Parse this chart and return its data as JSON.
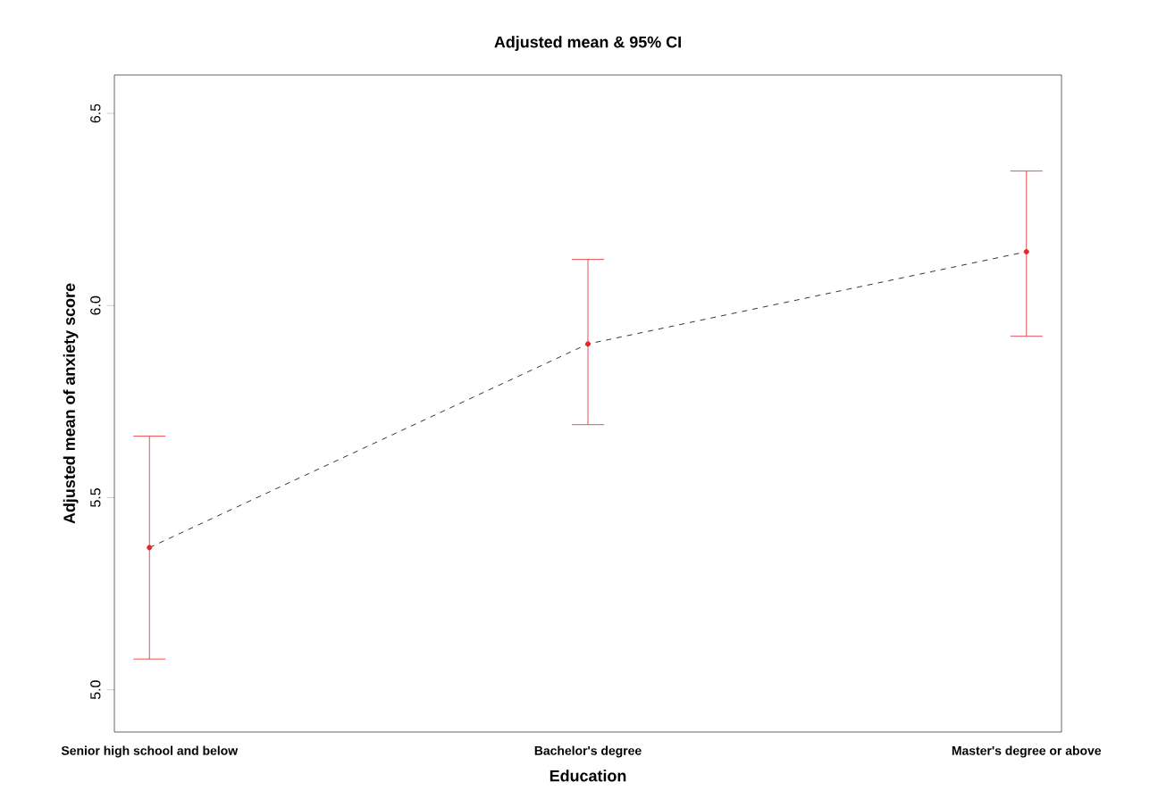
{
  "chart_data": {
    "type": "line",
    "title": "Adjusted mean & 95% CI",
    "xlabel": "Education",
    "ylabel": "Adjusted mean of anxiety score",
    "categories": [
      "Senior high school and below",
      "Bachelor's degree",
      "Master's degree or above"
    ],
    "series": [
      {
        "color": "#000000",
        "marker": "none",
        "values": [
          5.37,
          5.9,
          6.14
        ]
      },
      {
        "type": "scatter",
        "marker": "circle",
        "color": "#e3262b",
        "values": [
          5.37,
          5.9,
          6.14
        ],
        "errors": [
          [
            5.08,
            5.66
          ],
          [
            5.69,
            6.12
          ],
          [
            5.92,
            6.35
          ]
        ]
      }
    ],
    "ylim": [
      4.89,
      6.6
    ],
    "yticks": [
      {
        "value": 5,
        "label": "5.0"
      },
      {
        "value": 5.5,
        "label": "5.5"
      },
      {
        "value": 6,
        "label": "6.0"
      },
      {
        "value": 6.5,
        "label": "6.5"
      }
    ],
    "line_style": "dashed",
    "grid": false
  }
}
